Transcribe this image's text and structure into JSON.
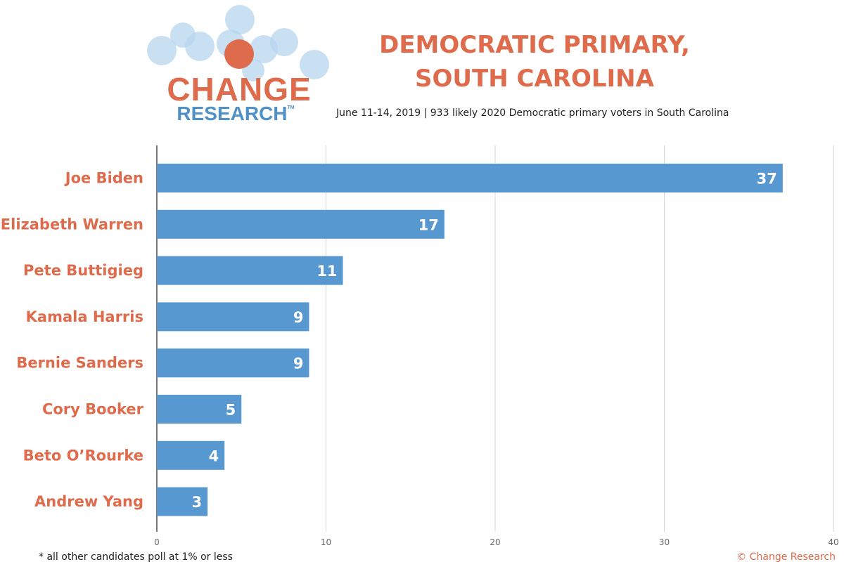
{
  "header": {
    "logo_word1": "CHANGE",
    "logo_word2": "RESEARCH",
    "logo_tm": "TM",
    "title_line1": "DEMOCRATIC PRIMARY,",
    "title_line2": "SOUTH CAROLINA",
    "subtitle": "June 11-14, 2019  | 933 likely 2020 Democratic primary voters in South Carolina"
  },
  "footer": {
    "footnote": "* all other candidates poll at 1% or less",
    "copyright": "© Change Research"
  },
  "colors": {
    "bar": "#5698cf",
    "label": "#dd6b4c",
    "bubble": "#b7d6ef",
    "accent_dot": "#dd6b4c"
  },
  "chart_data": {
    "type": "bar",
    "orientation": "horizontal",
    "categories": [
      "Joe Biden",
      "Elizabeth Warren",
      "Pete Buttigieg",
      "Kamala Harris",
      "Bernie Sanders",
      "Cory Booker",
      "Beto O’Rourke",
      "Andrew Yang"
    ],
    "values": [
      37,
      17,
      11,
      9,
      9,
      5,
      4,
      3
    ],
    "xlim": [
      0,
      40
    ],
    "xticks": [
      0,
      10,
      20,
      30,
      40
    ],
    "grid": true,
    "data_labels": true
  }
}
